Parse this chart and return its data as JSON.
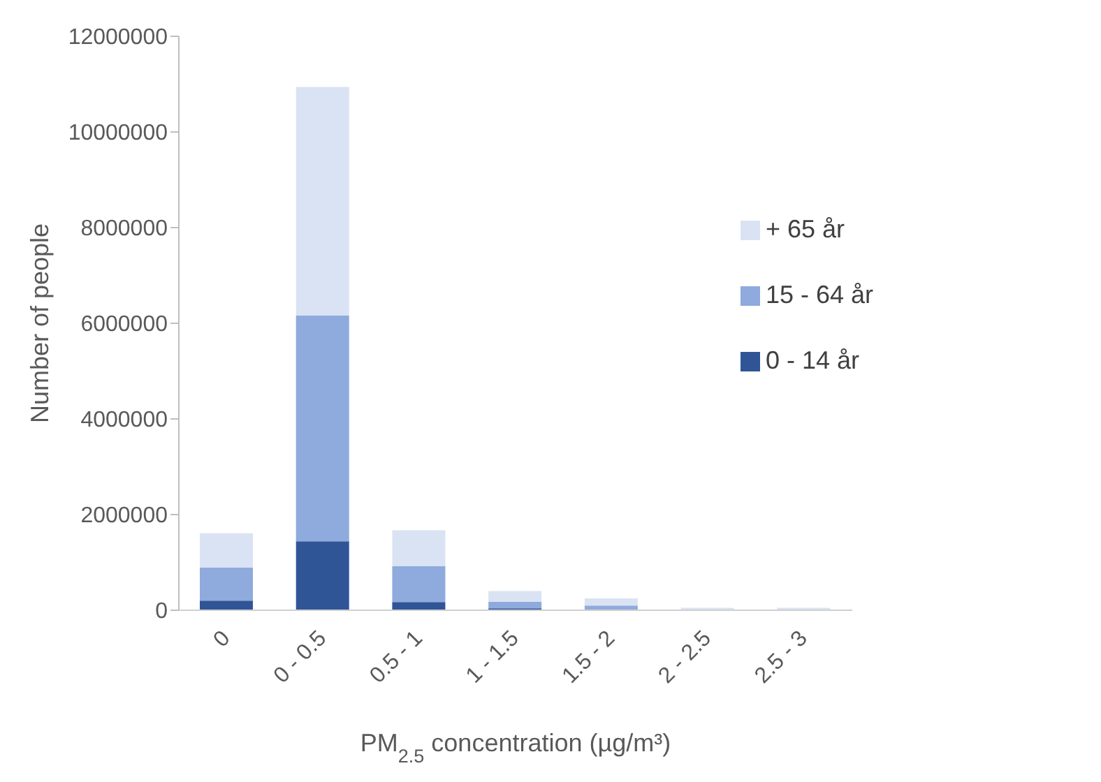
{
  "chart_data": {
    "type": "bar",
    "stacked": true,
    "xlabel": "PM$_{2.5}$ concentration (µg/m³)",
    "ylabel": "Number of people",
    "categories": [
      "0",
      "0 - 0.5",
      "0.5 - 1",
      "1 - 1.5",
      "1.5 - 2",
      "2 - 2.5",
      "2.5 - 3"
    ],
    "series": [
      {
        "name": "0 - 14 år",
        "color": "#2f5597",
        "values": [
          200000,
          1440000,
          170000,
          40000,
          null,
          0,
          0
        ]
      },
      {
        "name": "15 - 64 år",
        "color": "#8faadc",
        "values": [
          690000,
          4720000,
          750000,
          140000,
          100000,
          null,
          null
        ]
      },
      {
        "name": "+ 65 år",
        "color": "#dae3f3",
        "values": [
          720000,
          4780000,
          750000,
          220000,
          150000,
          50000,
          50000
        ]
      }
    ],
    "ylim": [
      0,
      12000000
    ],
    "yticks": [
      0,
      2000000,
      4000000,
      6000000,
      8000000,
      10000000,
      12000000
    ],
    "grid": false,
    "legend": "right"
  }
}
